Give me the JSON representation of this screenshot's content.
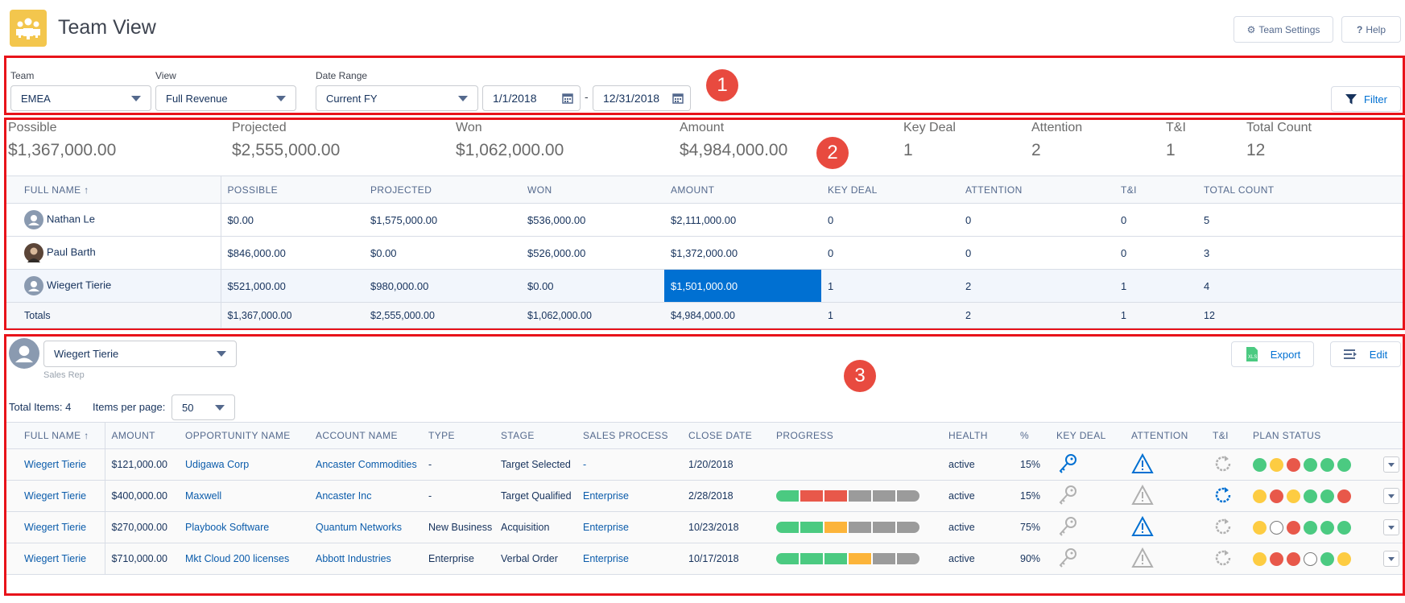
{
  "header": {
    "title": "Team View",
    "team_settings": "Team Settings",
    "help": "Help"
  },
  "filters": {
    "team_label": "Team",
    "team_value": "EMEA",
    "view_label": "View",
    "view_value": "Full Revenue",
    "date_label": "Date Range",
    "date_value": "Current FY",
    "date_from": "1/1/2018",
    "date_sep": "-",
    "date_to": "12/31/2018",
    "filter_button": "Filter"
  },
  "badges": {
    "b1": "1",
    "b2": "2",
    "b3": "3"
  },
  "summary": [
    {
      "label": "Possible",
      "value": "$1,367,000.00"
    },
    {
      "label": "Projected",
      "value": "$2,555,000.00"
    },
    {
      "label": "Won",
      "value": "$1,062,000.00"
    },
    {
      "label": "Amount",
      "value": "$4,984,000.00"
    },
    {
      "label": "Key Deal",
      "value": "1"
    },
    {
      "label": "Attention",
      "value": "2"
    },
    {
      "label": "T&I",
      "value": "1"
    },
    {
      "label": "Total Count",
      "value": "12"
    }
  ],
  "team_table": {
    "headers": [
      "FULL NAME",
      "POSSIBLE",
      "PROJECTED",
      "WON",
      "AMOUNT",
      "KEY DEAL",
      "ATTENTION",
      "T&I",
      "TOTAL COUNT"
    ],
    "rows": [
      [
        "Nathan Le",
        "$0.00",
        "$1,575,000.00",
        "$536,000.00",
        "$2,111,000.00",
        "0",
        "0",
        "0",
        "5"
      ],
      [
        "Paul Barth",
        "$846,000.00",
        "$0.00",
        "$526,000.00",
        "$1,372,000.00",
        "0",
        "0",
        "0",
        "3"
      ],
      [
        "Wiegert Tierie",
        "$521,000.00",
        "$980,000.00",
        "$0.00",
        "$1,501,000.00",
        "1",
        "2",
        "1",
        "4"
      ]
    ],
    "totals": [
      "Totals",
      "$1,367,000.00",
      "$2,555,000.00",
      "$1,062,000.00",
      "$4,984,000.00",
      "1",
      "2",
      "1",
      "12"
    ]
  },
  "detail": {
    "person": "Wiegert Tierie",
    "role": "Sales Rep",
    "export": "Export",
    "edit": "Edit",
    "total_items": "Total Items: 4",
    "per_page_label": "Items per page:",
    "per_page_value": "50",
    "headers": [
      "FULL NAME",
      "AMOUNT",
      "OPPORTUNITY NAME",
      "ACCOUNT NAME",
      "TYPE",
      "STAGE",
      "SALES PROCESS",
      "CLOSE DATE",
      "PROGRESS",
      "HEALTH",
      "%",
      "KEY DEAL",
      "ATTENTION",
      "T&I",
      "PLAN STATUS"
    ],
    "rows": [
      {
        "name": "Wiegert Tierie",
        "amount": "$121,000.00",
        "opp": "Udigawa Corp",
        "account": "Ancaster Commodities",
        "type": "-",
        "stage": "Target Selected",
        "process": "-",
        "close": "1/20/2018",
        "health": "active",
        "pct": "15%"
      },
      {
        "name": "Wiegert Tierie",
        "amount": "$400,000.00",
        "opp": "Maxwell",
        "account": "Ancaster Inc",
        "type": "-",
        "stage": "Target Qualified",
        "process": "Enterprise",
        "close": "2/28/2018",
        "health": "active",
        "pct": "15%"
      },
      {
        "name": "Wiegert Tierie",
        "amount": "$270,000.00",
        "opp": "Playbook Software",
        "account": "Quantum Networks",
        "type": "New Business",
        "stage": "Acquisition",
        "process": "Enterprise",
        "close": "10/23/2018",
        "health": "active",
        "pct": "75%"
      },
      {
        "name": "Wiegert Tierie",
        "amount": "$710,000.00",
        "opp": "Mkt Cloud 200 licenses",
        "account": "Abbott Industries",
        "type": "Enterprise",
        "stage": "Verbal Order",
        "process": "Enterprise",
        "close": "10/17/2018",
        "health": "active",
        "pct": "90%"
      }
    ]
  },
  "colors": {
    "green": "#4bca81",
    "red": "#e8584a",
    "yellow": "#fdcc42",
    "orange": "#fcb43a",
    "gray": "#9b9b9b",
    "blue": "#0070d2"
  }
}
